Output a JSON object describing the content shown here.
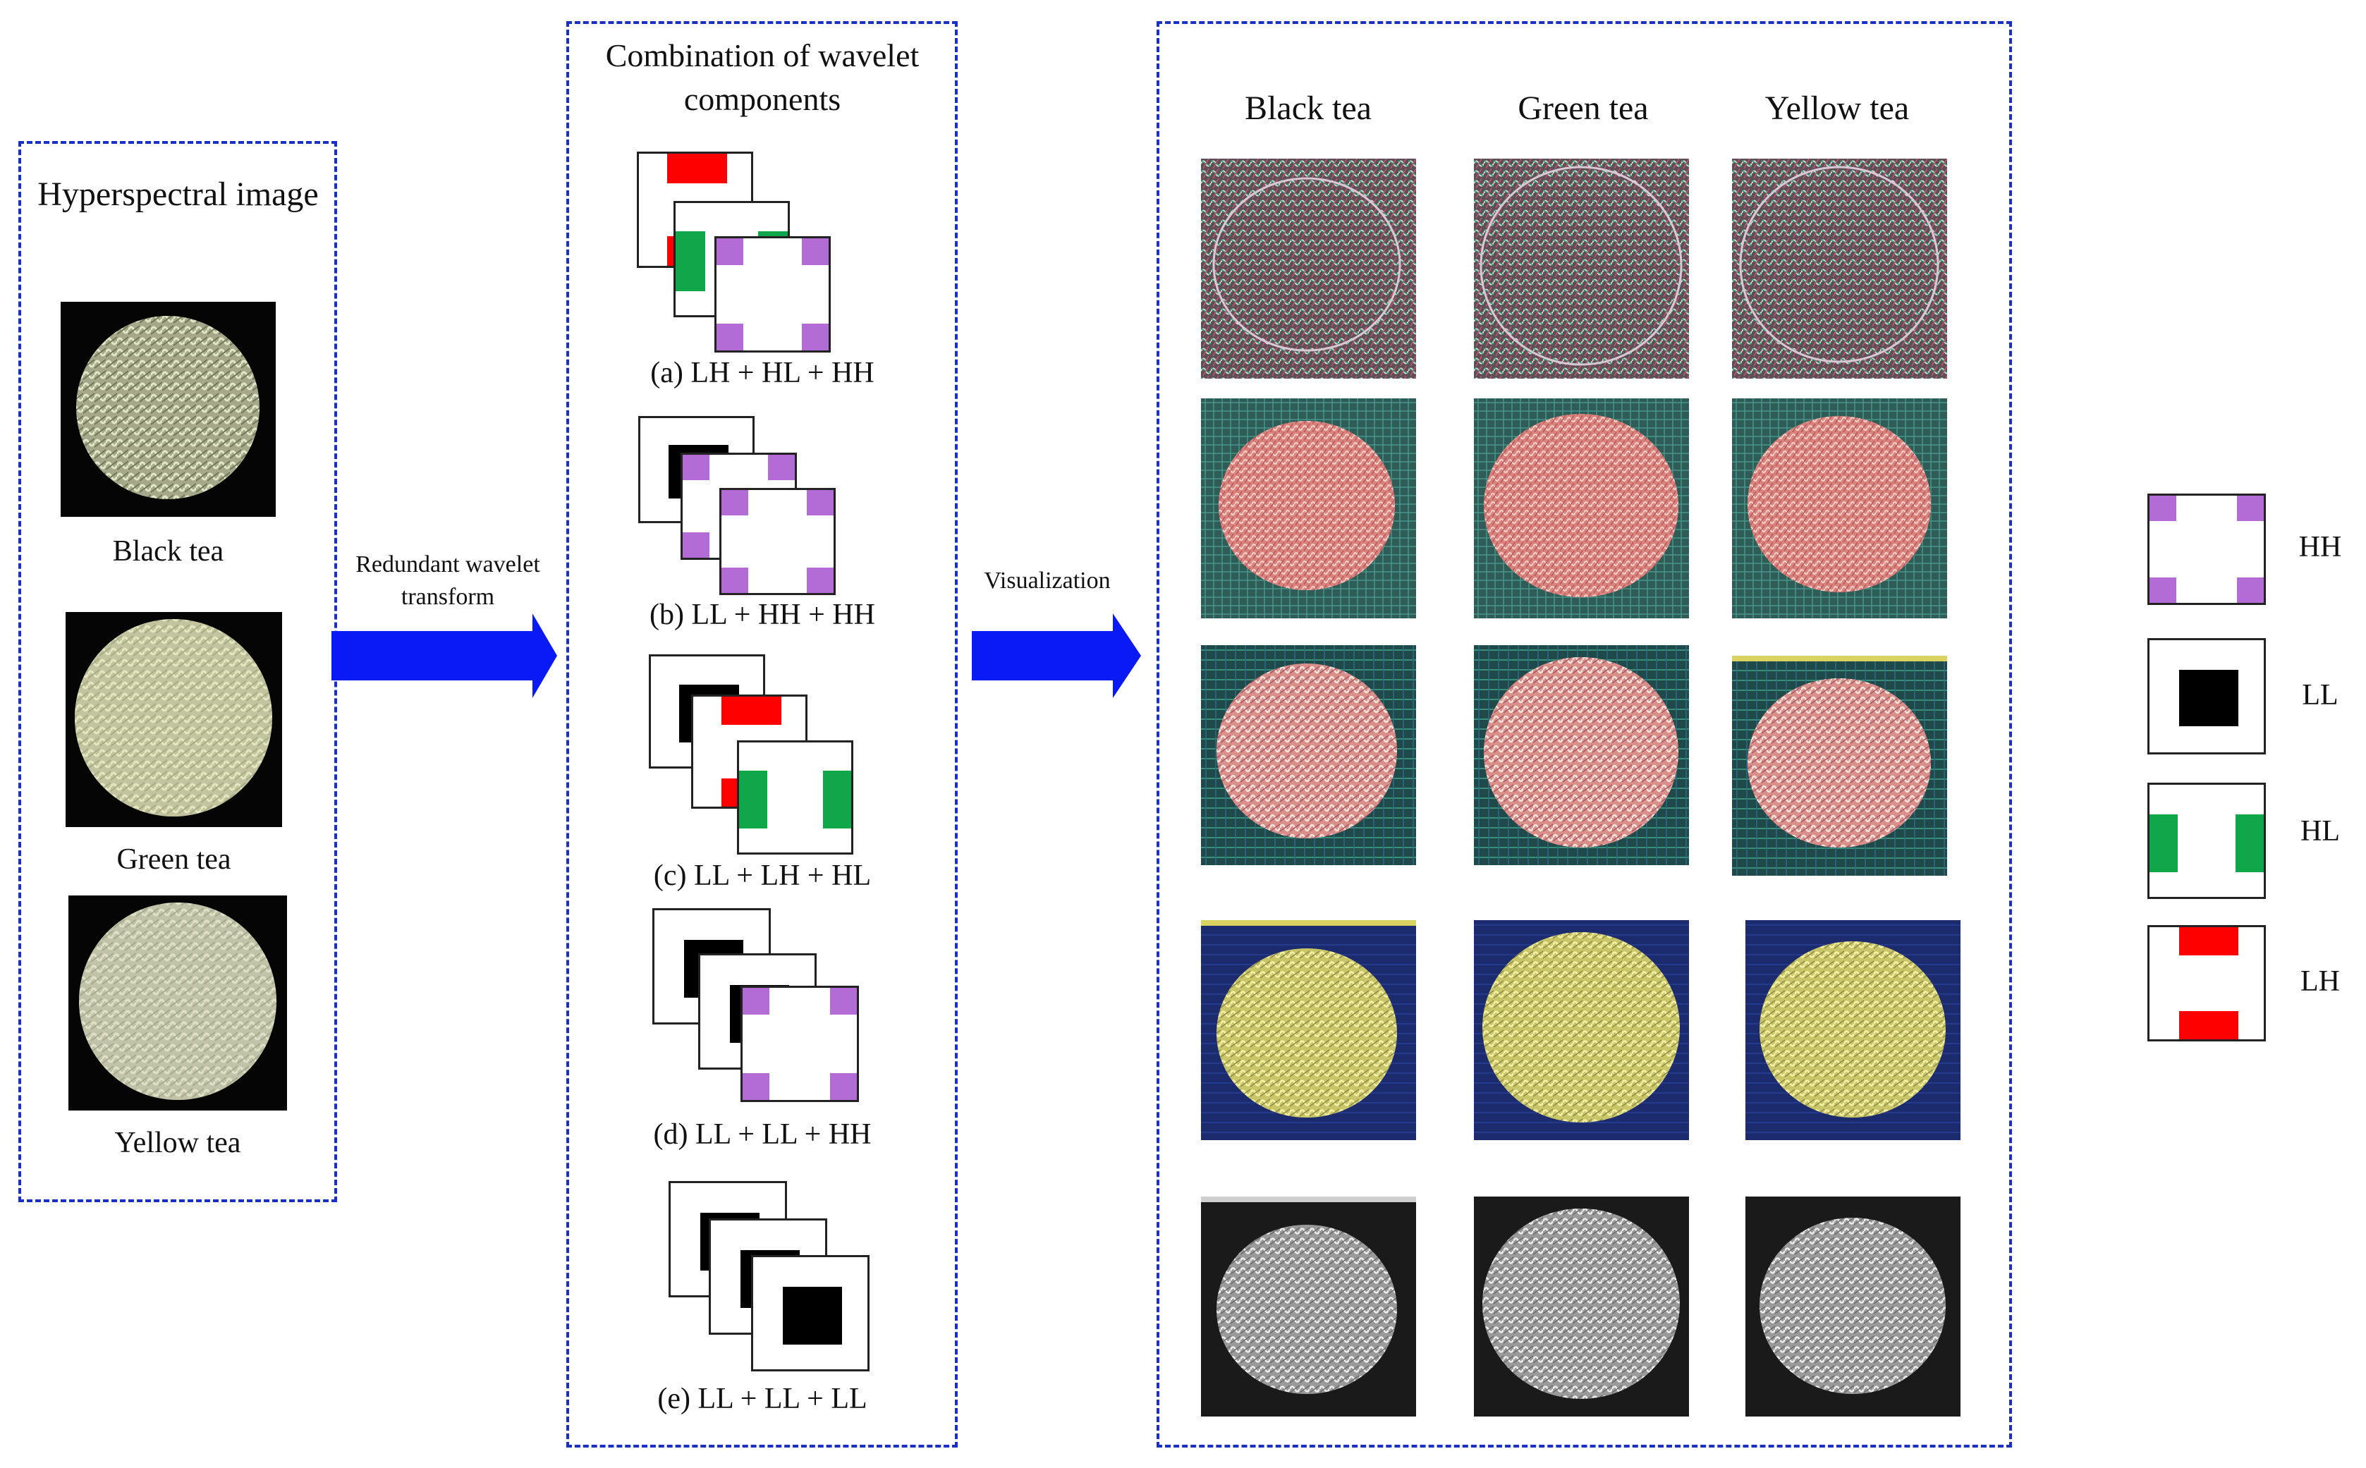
{
  "input_panel": {
    "title": "Hyperspectral image",
    "samples": [
      {
        "label": "Black tea"
      },
      {
        "label": "Green tea"
      },
      {
        "label": "Yellow tea"
      }
    ]
  },
  "arrows": {
    "transform_label_1": "Redundant wavelet",
    "transform_label_2": "transform",
    "visualization_label": "Visualization"
  },
  "combination_panel": {
    "title_line1": "Combination of wavelet",
    "title_line2": "components",
    "combos": [
      {
        "label": "(a) LH + HL + HH"
      },
      {
        "label": "(b) LL + HH + HH"
      },
      {
        "label": "(c) LL + LH + HL"
      },
      {
        "label": "(d) LL + LL + HH"
      },
      {
        "label": "(e) LL + LL + LL"
      }
    ]
  },
  "result_panel": {
    "columns": [
      {
        "header": "Black tea"
      },
      {
        "header": "Green tea"
      },
      {
        "header": "Yellow tea"
      }
    ]
  },
  "legend": {
    "items": [
      {
        "label": "HH",
        "color": "#b36cd6"
      },
      {
        "label": "LL",
        "color": "#000000"
      },
      {
        "label": "HL",
        "color": "#10a64a"
      },
      {
        "label": "LH",
        "color": "#ff0000"
      }
    ]
  },
  "colors": {
    "panel_border": "#1a2fc4",
    "arrow": "#0a1af5"
  }
}
